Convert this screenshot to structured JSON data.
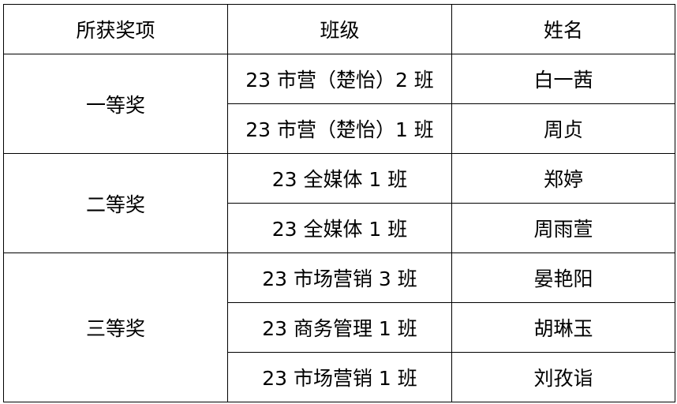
{
  "table": {
    "headers": [
      "所获奖项",
      "班级",
      "姓名"
    ],
    "groups": [
      {
        "award": "一等奖",
        "rows": [
          {
            "class": "23 市营（楚怡）2 班",
            "name": "白一茜"
          },
          {
            "class": "23 市营（楚怡）1 班",
            "name": "周贞"
          }
        ]
      },
      {
        "award": "二等奖",
        "rows": [
          {
            "class": "23 全媒体 1 班",
            "name": "郑婷"
          },
          {
            "class": "23 全媒体 1 班",
            "name": "周雨萱"
          }
        ]
      },
      {
        "award": "三等奖",
        "rows": [
          {
            "class": "23 市场营销 3 班",
            "name": "晏艳阳"
          },
          {
            "class": "23 商务管理 1 班",
            "name": "胡琳玉"
          },
          {
            "class": "23 市场营销 1 班",
            "name": "刘孜诣"
          }
        ]
      }
    ]
  }
}
